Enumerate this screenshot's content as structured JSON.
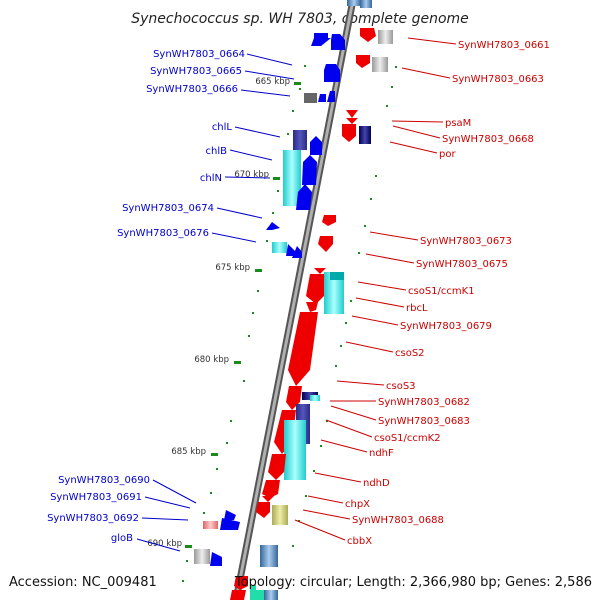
{
  "title": "Synechococcus sp. WH 7803, complete genome",
  "footer": {
    "accession": "Accession: NC_009481",
    "topology": "Topology: circular; Length: 2,366,980 bp; Genes: 2,586"
  },
  "colors": {
    "backbone": "#888888",
    "left_label": "#0000cc",
    "right_label": "#cc0000",
    "tick_green": "#1a8a1a",
    "forward_gene": "#0000ee",
    "reverse_gene": "#ee0000"
  },
  "ticks": [
    {
      "label": "665 kbp"
    },
    {
      "label": "670 kbp"
    },
    {
      "label": "675 kbp"
    },
    {
      "label": "680 kbp"
    },
    {
      "label": "685 kbp"
    },
    {
      "label": "690 kbp"
    }
  ],
  "left_labels": [
    {
      "text": "SynWH7803_0664"
    },
    {
      "text": "SynWH7803_0665"
    },
    {
      "text": "SynWH7803_0666"
    },
    {
      "text": "chlL"
    },
    {
      "text": "chlB"
    },
    {
      "text": "chlN"
    },
    {
      "text": "SynWH7803_0674"
    },
    {
      "text": "SynWH7803_0676"
    },
    {
      "text": "SynWH7803_0690"
    },
    {
      "text": "SynWH7803_0691"
    },
    {
      "text": "SynWH7803_0692"
    },
    {
      "text": "gloB"
    }
  ],
  "right_labels": [
    {
      "text": "SynWH7803_0661"
    },
    {
      "text": "SynWH7803_0663"
    },
    {
      "text": "psaM"
    },
    {
      "text": "SynWH7803_0668"
    },
    {
      "text": "por"
    },
    {
      "text": "SynWH7803_0673"
    },
    {
      "text": "SynWH7803_0675"
    },
    {
      "text": "csoS1/ccmK1"
    },
    {
      "text": "rbcL"
    },
    {
      "text": "SynWH7803_0679"
    },
    {
      "text": "csoS2"
    },
    {
      "text": "csoS3"
    },
    {
      "text": "SynWH7803_0682"
    },
    {
      "text": "SynWH7803_0683"
    },
    {
      "text": "csoS1/ccmK2"
    },
    {
      "text": "ndhF"
    },
    {
      "text": "ndhD"
    },
    {
      "text": "chpX"
    },
    {
      "text": "SynWH7803_0688"
    },
    {
      "text": "cbbX"
    }
  ]
}
